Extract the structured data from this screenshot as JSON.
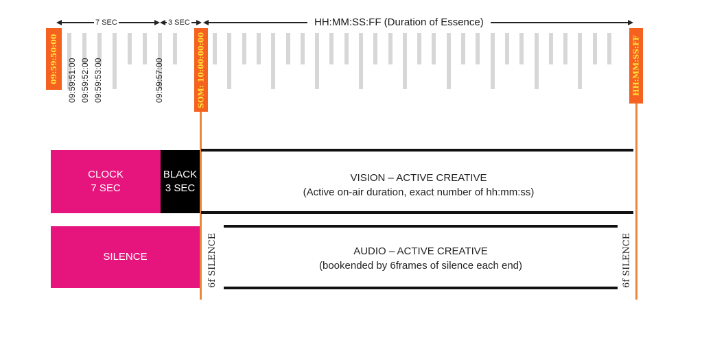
{
  "arrows": {
    "seven_sec": "7 SEC",
    "three_sec": "3 SEC",
    "duration": "HH:MM:SS:FF (Duration of Essence)"
  },
  "tags": {
    "start": "09:59:50:00",
    "som": "SOM: 10:00:00:00",
    "end": "HH:MM:SS:FF"
  },
  "timecodes": [
    "09:59:51:00",
    "09:59:52:00",
    "09:59:53:00",
    "09:59:57:00"
  ],
  "vision": {
    "clock": "CLOCK\n7 SEC",
    "black": "BLACK\n3 SEC",
    "title": "VISION – ACTIVE CREATIVE",
    "subtitle": "(Active on-air duration, exact number of hh:mm:ss)"
  },
  "audio": {
    "silence": "SILENCE",
    "silence_left": "6f SILENCE",
    "silence_right": "6f SILENCE",
    "title": "AUDIO – ACTIVE CREATIVE",
    "subtitle": "(bookended by 6frames of silence each end)"
  },
  "colors": {
    "accent_orange": "#f5621f",
    "tag_text_yellow": "#ffe23a",
    "pink": "#e6157d",
    "line_orange": "#e8893a"
  }
}
